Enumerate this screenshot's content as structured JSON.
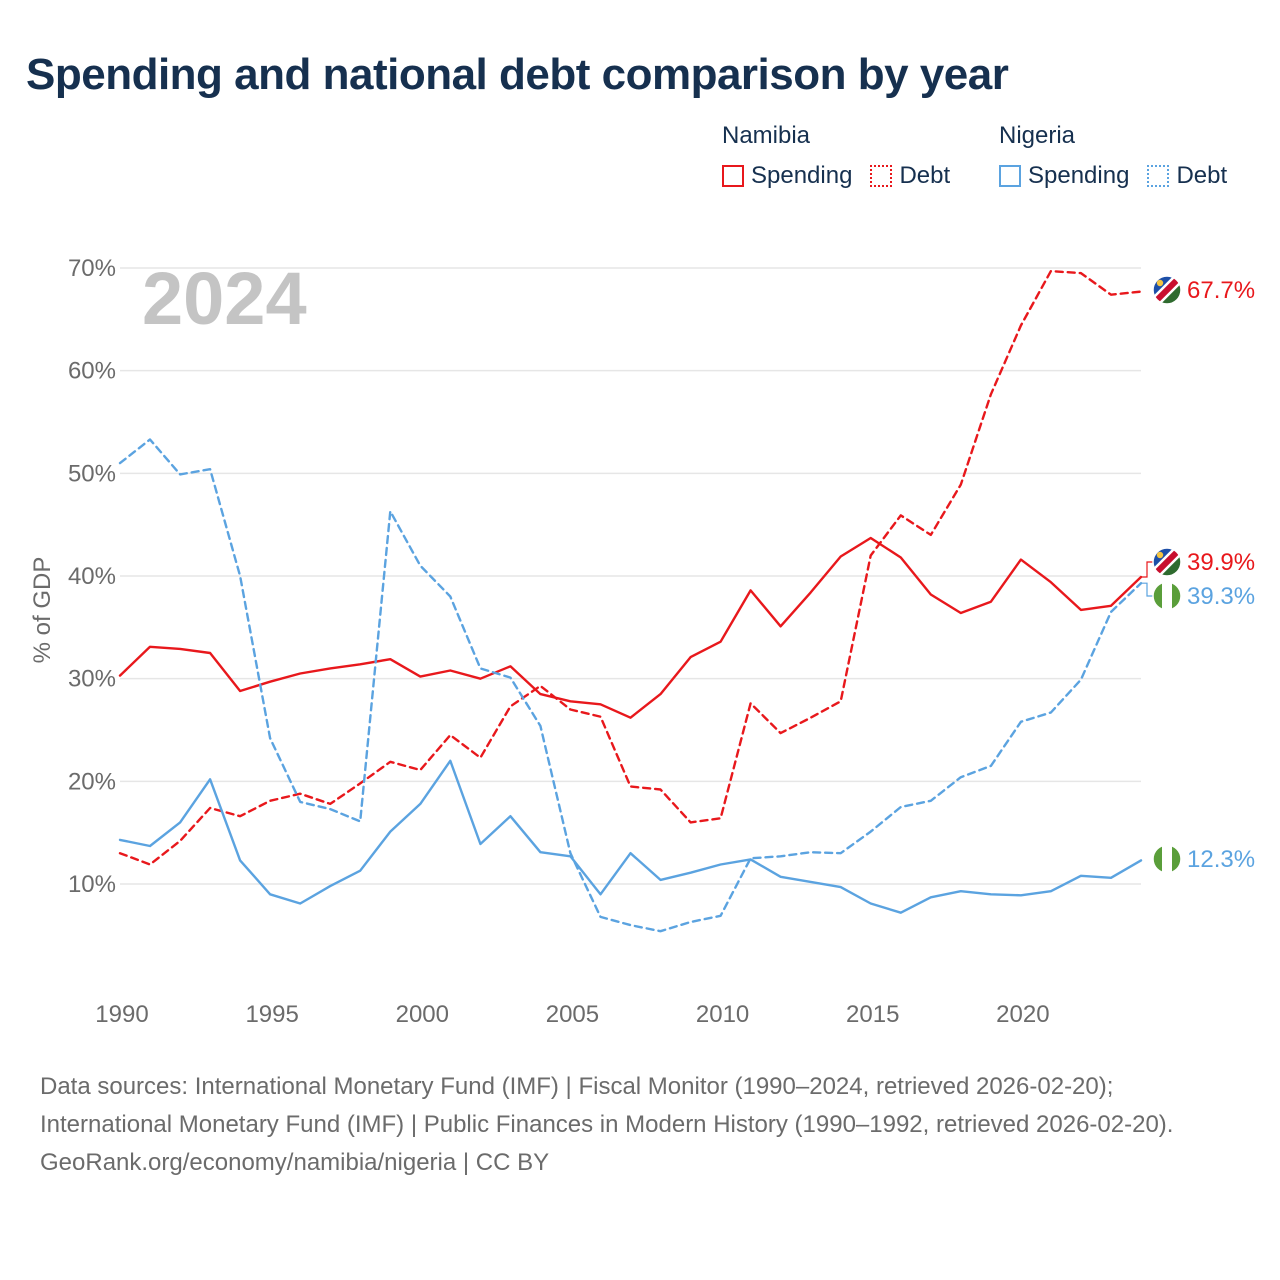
{
  "title": "Spending and national debt comparison by year",
  "legend": {
    "groups": [
      {
        "country": "Namibia",
        "items": [
          {
            "label": "Spending",
            "style": "solid",
            "color": "#e8181c"
          },
          {
            "label": "Debt",
            "style": "dotted",
            "color": "#e8181c"
          }
        ]
      },
      {
        "country": "Nigeria",
        "items": [
          {
            "label": "Spending",
            "style": "solid",
            "color": "#5ba3e0"
          },
          {
            "label": "Debt",
            "style": "dotted",
            "color": "#5ba3e0"
          }
        ]
      }
    ]
  },
  "chart_data": {
    "type": "line",
    "year_label": "2024",
    "ylabel": "% of GDP",
    "xlim": [
      1990,
      2024
    ],
    "ylim": [
      0,
      70
    ],
    "yticks": [
      10,
      20,
      30,
      40,
      50,
      60,
      70
    ],
    "ytick_labels": [
      "10%",
      "20%",
      "30%",
      "40%",
      "50%",
      "60%",
      "70%"
    ],
    "xticks": [
      1990,
      1995,
      2000,
      2005,
      2010,
      2015,
      2020
    ],
    "xtick_labels": [
      "1990",
      "1995",
      "2000",
      "2005",
      "2010",
      "2015",
      "2020"
    ],
    "x": [
      1990,
      1991,
      1992,
      1993,
      1994,
      1995,
      1996,
      1997,
      1998,
      1999,
      2000,
      2001,
      2002,
      2003,
      2004,
      2005,
      2006,
      2007,
      2008,
      2009,
      2010,
      2011,
      2012,
      2013,
      2014,
      2015,
      2016,
      2017,
      2018,
      2019,
      2020,
      2021,
      2022,
      2023,
      2024
    ],
    "series": [
      {
        "name": "Namibia Spending",
        "country": "Namibia",
        "style": "solid",
        "color": "#e8181c",
        "values": [
          30.3,
          33.1,
          32.9,
          32.5,
          28.8,
          29.7,
          30.5,
          31.0,
          31.4,
          31.9,
          30.2,
          30.8,
          30.0,
          31.2,
          28.5,
          27.8,
          27.5,
          26.2,
          28.5,
          32.1,
          33.6,
          38.6,
          35.1,
          38.4,
          41.9,
          43.7,
          41.8,
          38.2,
          36.4,
          37.5,
          41.6,
          39.4,
          36.7,
          37.1,
          39.9
        ],
        "end_label": "39.9%"
      },
      {
        "name": "Namibia Debt",
        "country": "Namibia",
        "style": "dashed",
        "color": "#e8181c",
        "values": [
          13.0,
          11.9,
          14.2,
          17.4,
          16.6,
          18.1,
          18.8,
          17.8,
          19.8,
          21.9,
          21.1,
          24.5,
          22.3,
          27.3,
          29.3,
          27.0,
          26.3,
          19.5,
          19.2,
          16.0,
          16.4,
          27.6,
          24.7,
          26.2,
          27.8,
          42.0,
          45.9,
          44.0,
          48.9,
          57.7,
          64.4,
          69.7,
          69.5,
          67.4,
          67.7
        ],
        "end_label": "67.7%"
      },
      {
        "name": "Nigeria Spending",
        "country": "Nigeria",
        "style": "solid",
        "color": "#5ba3e0",
        "values": [
          14.3,
          13.7,
          16.0,
          20.2,
          12.3,
          9.0,
          8.1,
          9.8,
          11.3,
          15.1,
          17.8,
          22.0,
          13.9,
          16.6,
          13.1,
          12.7,
          9.0,
          13.0,
          10.4,
          11.1,
          11.9,
          12.4,
          10.7,
          10.2,
          9.7,
          8.1,
          7.2,
          8.7,
          9.3,
          9.0,
          8.9,
          9.3,
          10.8,
          10.6,
          12.3
        ],
        "end_label": "12.3%"
      },
      {
        "name": "Nigeria Debt",
        "country": "Nigeria",
        "style": "dashed",
        "color": "#5ba3e0",
        "values": [
          51.0,
          53.3,
          49.9,
          50.4,
          40.0,
          24.2,
          18.0,
          17.3,
          16.1,
          46.3,
          41.0,
          38.0,
          31.0,
          30.1,
          25.4,
          13.0,
          6.8,
          6.0,
          5.4,
          6.3,
          6.9,
          12.5,
          12.7,
          13.1,
          13.0,
          15.1,
          17.5,
          18.1,
          20.4,
          21.5,
          25.8,
          26.7,
          29.9,
          36.5,
          39.3
        ],
        "end_label": "39.3%"
      }
    ]
  },
  "sources": {
    "text": "Data sources: International Monetary Fund (IMF) | Fiscal Monitor (1990–2024, retrieved 2026-02-20); International Monetary Fund (IMF) | Public Finances in Modern History (1990–1992, retrieved 2026-02-20).",
    "credit": "GeoRank.org/economy/namibia/nigeria | CC BY"
  },
  "colors": {
    "namibia": "#e8181c",
    "nigeria": "#5ba3e0",
    "title": "#16304f",
    "axis_text": "#6b6b6b",
    "grid": "#e6e6e6",
    "year_watermark": "#c4c4c4"
  }
}
